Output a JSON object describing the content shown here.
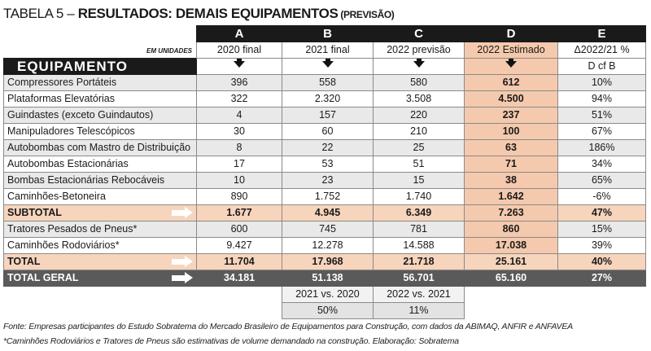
{
  "title": {
    "prefix": "TABELA 5 – ",
    "main": "RESULTADOS: DEMAIS EQUIPAMENTOS",
    "sub": " (PREVISÃO)"
  },
  "header": {
    "units": "EM UNIDADES",
    "equipment": "EQUIPAMENTO",
    "columns": [
      {
        "letter": "A",
        "label": "2020  final"
      },
      {
        "letter": "B",
        "label": "2021 final"
      },
      {
        "letter": "C",
        "label": "2022 previsão"
      },
      {
        "letter": "D",
        "label": "2022 Estimado"
      },
      {
        "letter": "E",
        "label": "Δ2022/21 %"
      }
    ],
    "e_subheader": "D cf B"
  },
  "rows": [
    {
      "label": "Compressores Portáteis",
      "a": "396",
      "b": "558",
      "c": "580",
      "d": "612",
      "e": "10%"
    },
    {
      "label": "Plataformas Elevatórias",
      "a": "322",
      "b": "2.320",
      "c": "3.508",
      "d": "4.500",
      "e": "94%"
    },
    {
      "label": "Guindastes (exceto Guindautos)",
      "a": "4",
      "b": "157",
      "c": "220",
      "d": "237",
      "e": "51%"
    },
    {
      "label": "Manipuladores Telescópicos",
      "a": "30",
      "b": "60",
      "c": "210",
      "d": "100",
      "e": "67%"
    },
    {
      "label": "Autobombas com Mastro de Distribuição",
      "a": "8",
      "b": "22",
      "c": "25",
      "d": "63",
      "e": "186%"
    },
    {
      "label": "Autobombas Estacionárias",
      "a": "17",
      "b": "53",
      "c": "51",
      "d": "71",
      "e": "34%"
    },
    {
      "label": "Bombas Estacionárias Rebocáveis",
      "a": "10",
      "b": "23",
      "c": "15",
      "d": "38",
      "e": "65%"
    },
    {
      "label": "Caminhões-Betoneira",
      "a": "890",
      "b": "1.752",
      "c": "1.740",
      "d": "1.642",
      "e": "-6%"
    }
  ],
  "subtotal": {
    "label": "SUBTOTAL",
    "a": "1.677",
    "b": "4.945",
    "c": "6.349",
    "d": "7.263",
    "e": "47%"
  },
  "rows2": [
    {
      "label": "Tratores Pesados de Pneus*",
      "a": "600",
      "b": "745",
      "c": "781",
      "d": "860",
      "e": "15%"
    },
    {
      "label": "Caminhões Rodoviários*",
      "a": "9.427",
      "b": "12.278",
      "c": "14.588",
      "d": "17.038",
      "e": "39%"
    }
  ],
  "total": {
    "label": "TOTAL",
    "a": "11.704",
    "b": "17.968",
    "c": "21.718",
    "d": "25.161",
    "e": "40%"
  },
  "total_geral": {
    "label": "TOTAL GERAL",
    "a": "34.181",
    "b": "51.138",
    "c": "56.701",
    "d": "65.160",
    "e": "27%"
  },
  "comparisons": {
    "b_label": "2021 vs. 2020",
    "c_label": "2022 vs. 2021",
    "b_value": "50%",
    "c_value": "11%"
  },
  "notes": {
    "source": "Fonte: Empresas participantes do Estudo Sobratema do Mercado Brasileiro de Equipamentos para Construção, com dados da ABIMAQ, ANFIR e ANFAVEA",
    "footnote": "*Caminhões Rodoviários e Tratores de Pneus são estimativas de volume demandado na construção. Elaboração: Sobratema"
  },
  "colors": {
    "header_black": "#1a1a1a",
    "highlight_peach": "#f5c9ad",
    "subtotal_peach": "#f7d4bc",
    "row_gray": "#e9e9ea",
    "total_geral_gray": "#5a5a5a"
  },
  "icons": [
    "down-arrow-icon",
    "right-arrow-icon"
  ]
}
